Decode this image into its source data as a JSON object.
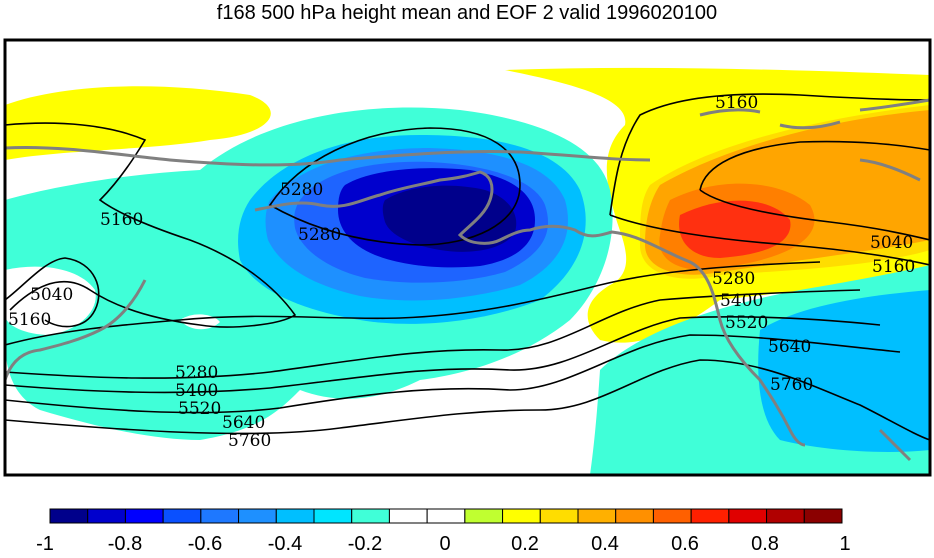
{
  "title": "f168 500 hPa height mean and EOF 2 valid 1996020100",
  "contour_labels": {
    "c5160_a": "5160",
    "c5160_b": "5160",
    "c5160_c": "5160",
    "c5160_d": "5160",
    "c5280_a": "5280",
    "c5280_b": "5280",
    "c5280_c": "5280",
    "c5280_d": "5280",
    "c5040_a": "5040",
    "c5040_b": "5040",
    "c5400_a": "5400",
    "c5400_b": "5400",
    "c5520_a": "5520",
    "c5520_b": "5520",
    "c5640_a": "5640",
    "c5640_b": "5640",
    "c5760_a": "5760",
    "c5760_b": "5760"
  },
  "colorbar": {
    "colors": [
      "#00008b",
      "#0000cd",
      "#0000ff",
      "#0a50ff",
      "#1e78ff",
      "#1e90ff",
      "#00bfff",
      "#00e5ff",
      "#40ffd8",
      "#ffffff",
      "#ffffff",
      "#c0ff30",
      "#ffff00",
      "#ffdd00",
      "#ffb000",
      "#ff9000",
      "#ff6000",
      "#ff2000",
      "#e00000",
      "#b00000",
      "#8b0000"
    ],
    "tick_labels": [
      "-1",
      "-0.8",
      "-0.6",
      "-0.4",
      "-0.2",
      "0",
      "0.2",
      "0.4",
      "0.6",
      "0.8",
      "1"
    ]
  },
  "palette": {
    "coast": "#808080",
    "frame": "#000000"
  }
}
